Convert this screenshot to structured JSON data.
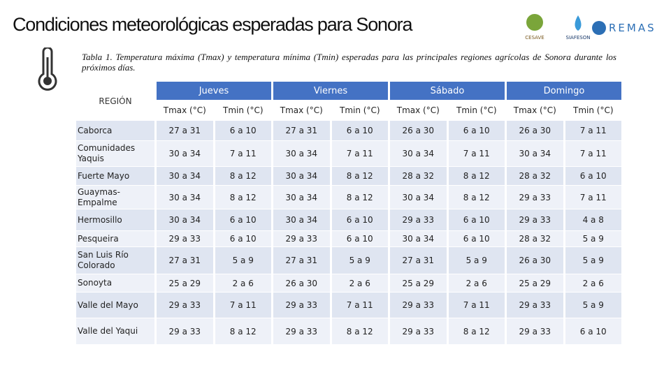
{
  "header": {
    "title": "Condiciones meteorológicas esperadas para Sonora",
    "logos": [
      "CESAVE",
      "SIAFESON",
      "REMAS"
    ]
  },
  "caption": "Tabla 1. Temperatura máxima (Tmax) y temperatura mínima (Tmin) esperadas para las principales regiones agrícolas de Sonora durante los próximos días.",
  "table": {
    "region_header": "REGIÓN",
    "days": [
      "Jueves",
      "Viernes",
      "Sábado",
      "Domingo"
    ],
    "subheaders": [
      "Tmax (°C)",
      "Tmin (°C)",
      "Tmax (°C)",
      "Tmin (°C)",
      "Tmax (°C)",
      "Tmin (°C)",
      "Tmax (°C)",
      "Tmin (°C)"
    ],
    "rows": [
      [
        "Caborca",
        "27 a 31",
        "6 a 10",
        "27 a 31",
        "6 a 10",
        "26 a 30",
        "6 a 10",
        "26 a 30",
        "7 a 11"
      ],
      [
        "Comunidades Yaquis",
        "30 a 34",
        "7 a 11",
        "30 a 34",
        "7 a 11",
        "30 a 34",
        "7 a 11",
        "30 a 34",
        "7 a 11"
      ],
      [
        "Fuerte Mayo",
        "30 a 34",
        "8 a 12",
        "30 a 34",
        "8 a 12",
        "28 a 32",
        "8 a 12",
        "28 a 32",
        "6 a 10"
      ],
      [
        "Guaymas-Empalme",
        "30 a 34",
        "8 a 12",
        "30 a 34",
        "8 a 12",
        "30 a 34",
        "8 a 12",
        "29 a 33",
        "7 a 11"
      ],
      [
        "Hermosillo",
        "30 a 34",
        "6 a 10",
        "30 a 34",
        "6 a 10",
        "29 a 33",
        "6 a 10",
        "29 a 33",
        "4 a 8"
      ],
      [
        "Pesqueira",
        "29 a 33",
        "6 a 10",
        "29 a 33",
        "6 a 10",
        "30 a 34",
        "6 a 10",
        "28 a 32",
        "5 a 9"
      ],
      [
        "San Luis Río Colorado",
        "27 a 31",
        "5 a 9",
        "27 a 31",
        "5 a 9",
        "27 a 31",
        "5 a 9",
        "26 a 30",
        "5 a 9"
      ],
      [
        "Sonoyta",
        "25 a 29",
        "2 a 6",
        "26 a 30",
        "2 a 6",
        "25 a 29",
        "2 a 6",
        "25 a 29",
        "2 a 6"
      ],
      [
        "Valle del Mayo",
        "29 a 33",
        "7 a 11",
        "29 a 33",
        "7 a 11",
        "29 a 33",
        "7 a 11",
        "29 a 33",
        "5 a 9"
      ],
      [
        "Valle del Yaqui",
        "29 a 33",
        "8 a 12",
        "29 a 33",
        "8 a 12",
        "29 a 33",
        "8 a 12",
        "29 a 33",
        "6 a 10"
      ]
    ]
  }
}
